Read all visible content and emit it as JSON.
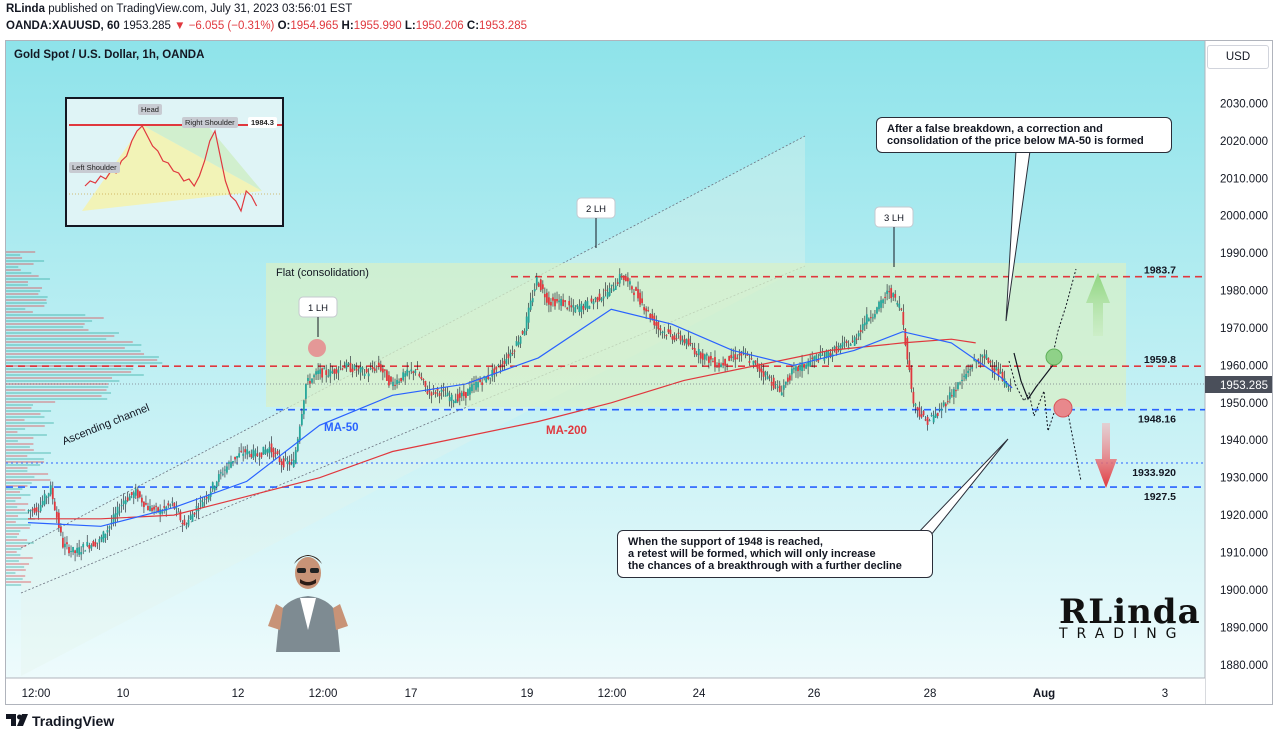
{
  "header": {
    "publisher": "RLinda",
    "published_text": "published on TradingView.com, July 31, 2023 03:56:01 EST",
    "symbol": "OANDA:XAUUSD, 60",
    "last": "1953.285",
    "change": "−6.055 (−0.31%)",
    "change_arrow": "▼",
    "open_label": "O:",
    "open": "1954.965",
    "high_label": "H:",
    "high": "1955.990",
    "low_label": "L:",
    "low": "1950.206",
    "close_label": "C:",
    "close": "1953.285"
  },
  "chart_title": "Gold Spot / U.S. Dollar, 1h, OANDA",
  "currency_button": "USD",
  "footer": {
    "brand": "TradingView",
    "icon": "tradingview-logo-icon"
  },
  "logo": {
    "top": "RLinda",
    "bottom": "TRADING"
  },
  "callouts": {
    "top": "After a false breakdown, a correction and\nconsolidation of the price below MA-50 is formed",
    "bottom": "When the support of 1948 is reached,\na retest will be formed, which will only increase\nthe chances of a breakthrough with a further decline"
  },
  "inset": {
    "head": "Head",
    "left_shoulder": "Left Shoulder",
    "right_shoulder": "Right Shoulder",
    "level": "1984.3"
  },
  "colors": {
    "bull": "#26a69a",
    "bear": "#e0383e",
    "ma50": "#2962ff",
    "ma200": "#e0383e",
    "background_top": "#8ee3ea",
    "background_bottom": "#f2fcfd",
    "flat_zone": "#d8f0c8"
  },
  "chart_data": {
    "type": "candlestick",
    "title": "Gold Spot / U.S. Dollar, 1h, OANDA",
    "y_axis": {
      "ylim": [
        1877,
        2036
      ],
      "ticks": [
        "2030.000",
        "2020.000",
        "2010.000",
        "2000.000",
        "1990.000",
        "1980.000",
        "1970.000",
        "1960.000",
        "1950.000",
        "1940.000",
        "1930.000",
        "1920.000",
        "1910.000",
        "1900.000",
        "1890.000",
        "1880.000"
      ],
      "current_price": "1953.285"
    },
    "x_axis": {
      "ticks": [
        "12:00",
        "10",
        "12",
        "12:00",
        "17",
        "19",
        "12:00",
        "24",
        "26",
        "28",
        "Aug",
        "3"
      ]
    },
    "price_path": [
      [
        0,
        1921
      ],
      [
        1,
        1922
      ],
      [
        2,
        1927
      ],
      [
        3,
        1912
      ],
      [
        4,
        1910
      ],
      [
        5,
        1912
      ],
      [
        6,
        1913
      ],
      [
        7,
        1918
      ],
      [
        8,
        1924
      ],
      [
        9,
        1926
      ],
      [
        10,
        1922
      ],
      [
        11,
        1921
      ],
      [
        12,
        1923
      ],
      [
        13,
        1917
      ],
      [
        14,
        1922
      ],
      [
        15,
        1926
      ],
      [
        16,
        1931
      ],
      [
        17,
        1935
      ],
      [
        18,
        1937
      ],
      [
        19,
        1936
      ],
      [
        20,
        1938
      ],
      [
        21,
        1934
      ],
      [
        22,
        1934
      ],
      [
        23,
        1955
      ],
      [
        24,
        1958
      ],
      [
        25,
        1958
      ],
      [
        26,
        1960
      ],
      [
        27,
        1959
      ],
      [
        28,
        1958
      ],
      [
        29,
        1960
      ],
      [
        30,
        1955
      ],
      [
        31,
        1957
      ],
      [
        32,
        1959
      ],
      [
        33,
        1953
      ],
      [
        34,
        1953
      ],
      [
        35,
        1951
      ],
      [
        36,
        1952
      ],
      [
        37,
        1955
      ],
      [
        38,
        1957
      ],
      [
        39,
        1960
      ],
      [
        40,
        1964
      ],
      [
        41,
        1970
      ],
      [
        42,
        1983
      ],
      [
        43,
        1977
      ],
      [
        44,
        1977
      ],
      [
        45,
        1975
      ],
      [
        46,
        1976
      ],
      [
        47,
        1978
      ],
      [
        48,
        1980
      ],
      [
        49,
        1984
      ],
      [
        50,
        1980
      ],
      [
        51,
        1975
      ],
      [
        52,
        1970
      ],
      [
        53,
        1968
      ],
      [
        54,
        1967
      ],
      [
        55,
        1964
      ],
      [
        56,
        1962
      ],
      [
        57,
        1960
      ],
      [
        58,
        1962
      ],
      [
        59,
        1963
      ],
      [
        60,
        1960
      ],
      [
        61,
        1957
      ],
      [
        62,
        1953
      ],
      [
        63,
        1958
      ],
      [
        64,
        1960
      ],
      [
        65,
        1962
      ],
      [
        66,
        1963
      ],
      [
        67,
        1965
      ],
      [
        68,
        1966
      ],
      [
        69,
        1972
      ],
      [
        70,
        1975
      ],
      [
        71,
        1980
      ],
      [
        72,
        1975
      ],
      [
        73,
        1950
      ],
      [
        74,
        1945
      ],
      [
        75,
        1947
      ],
      [
        76,
        1952
      ],
      [
        77,
        1956
      ],
      [
        78,
        1961
      ],
      [
        79,
        1962
      ],
      [
        80,
        1958
      ],
      [
        81,
        1953
      ]
    ],
    "series": [
      {
        "name": "MA-50",
        "values": [
          [
            0,
            1918
          ],
          [
            6,
            1917
          ],
          [
            12,
            1922
          ],
          [
            18,
            1929
          ],
          [
            24,
            1944
          ],
          [
            30,
            1952
          ],
          [
            36,
            1955
          ],
          [
            42,
            1962
          ],
          [
            48,
            1975
          ],
          [
            53,
            1971
          ],
          [
            58,
            1964
          ],
          [
            63,
            1960
          ],
          [
            68,
            1964
          ],
          [
            72,
            1969
          ],
          [
            76,
            1966
          ],
          [
            80,
            1957
          ],
          [
            81,
            1954
          ]
        ]
      },
      {
        "name": "MA-200",
        "values": [
          [
            0,
            1919
          ],
          [
            6,
            1919
          ],
          [
            12,
            1920
          ],
          [
            18,
            1925
          ],
          [
            24,
            1930
          ],
          [
            30,
            1937
          ],
          [
            36,
            1941
          ],
          [
            42,
            1945
          ],
          [
            48,
            1950
          ],
          [
            54,
            1956
          ],
          [
            60,
            1960
          ],
          [
            66,
            1964
          ],
          [
            72,
            1966
          ],
          [
            76,
            1967
          ],
          [
            78,
            1966
          ]
        ]
      }
    ],
    "levels": [
      {
        "label": "1983.7",
        "value": 1983.7,
        "style": "dashed",
        "color": "#e0383e"
      },
      {
        "label": "1959.8",
        "value": 1959.8,
        "style": "dashed",
        "color": "#e0383e"
      },
      {
        "label": "1948.16",
        "value": 1948.16,
        "style": "dashed",
        "color": "#2962ff"
      },
      {
        "label": "1933.920",
        "value": 1933.92,
        "style": "dotted",
        "color": "#2962ff"
      },
      {
        "label": "1927.5",
        "value": 1927.5,
        "style": "dashed",
        "color": "#2962ff"
      }
    ],
    "annotations": {
      "flat": "Flat (consolidation)",
      "channel": "Ascending channel",
      "ma50": "MA-50",
      "ma200": "MA-200",
      "lh1": "1 LH",
      "lh2": "2 LH",
      "lh3": "3 LH"
    },
    "grid": false,
    "legend": "none"
  }
}
